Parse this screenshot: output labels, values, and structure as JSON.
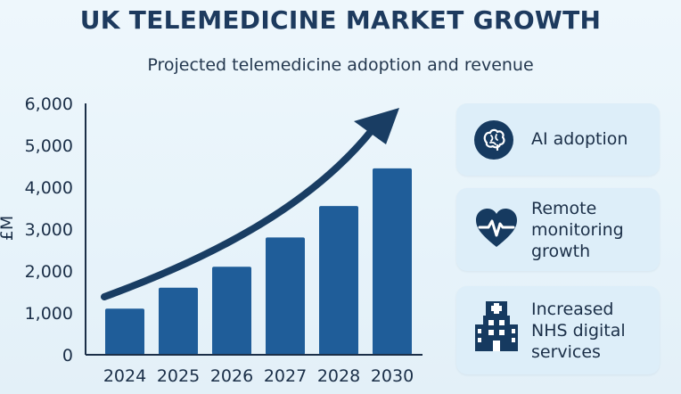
{
  "header": {
    "title": "UK TELEMEDICINE MARKET GROWTH",
    "subtitle": "Projected telemedicine adoption and revenue"
  },
  "colors": {
    "bar": "#1f5d99",
    "arrow": "#193d63",
    "text": "#1b2f48",
    "card": "#ddeef9"
  },
  "chart_data": {
    "type": "bar",
    "title": "UK TELEMEDICINE MARKET GROWTH",
    "subtitle": "Projected telemedicine adoption and revenue",
    "xlabel": "",
    "ylabel": "£M",
    "categories": [
      "2024",
      "2025",
      "2026",
      "2027",
      "2028",
      "2030"
    ],
    "values": [
      1100,
      1600,
      2100,
      2800,
      3550,
      4450
    ],
    "ylim": [
      0,
      6000
    ],
    "yticks": [
      0,
      1000,
      2000,
      3000,
      4000,
      5000,
      6000
    ],
    "ytick_labels": [
      "0",
      "1,000",
      "2,000",
      "3,000",
      "4,000",
      "5,000",
      "6,000"
    ],
    "grid": false,
    "trend_arrow": true
  },
  "cards": [
    {
      "label_lines": [
        "AI adoption"
      ],
      "icon": "brain-icon"
    },
    {
      "label_lines": [
        "Remote",
        "monitoring",
        "growth"
      ],
      "icon": "heart-pulse-icon"
    },
    {
      "label_lines": [
        "Increased",
        "NHS digital",
        "services"
      ],
      "icon": "hospital-icon"
    }
  ]
}
